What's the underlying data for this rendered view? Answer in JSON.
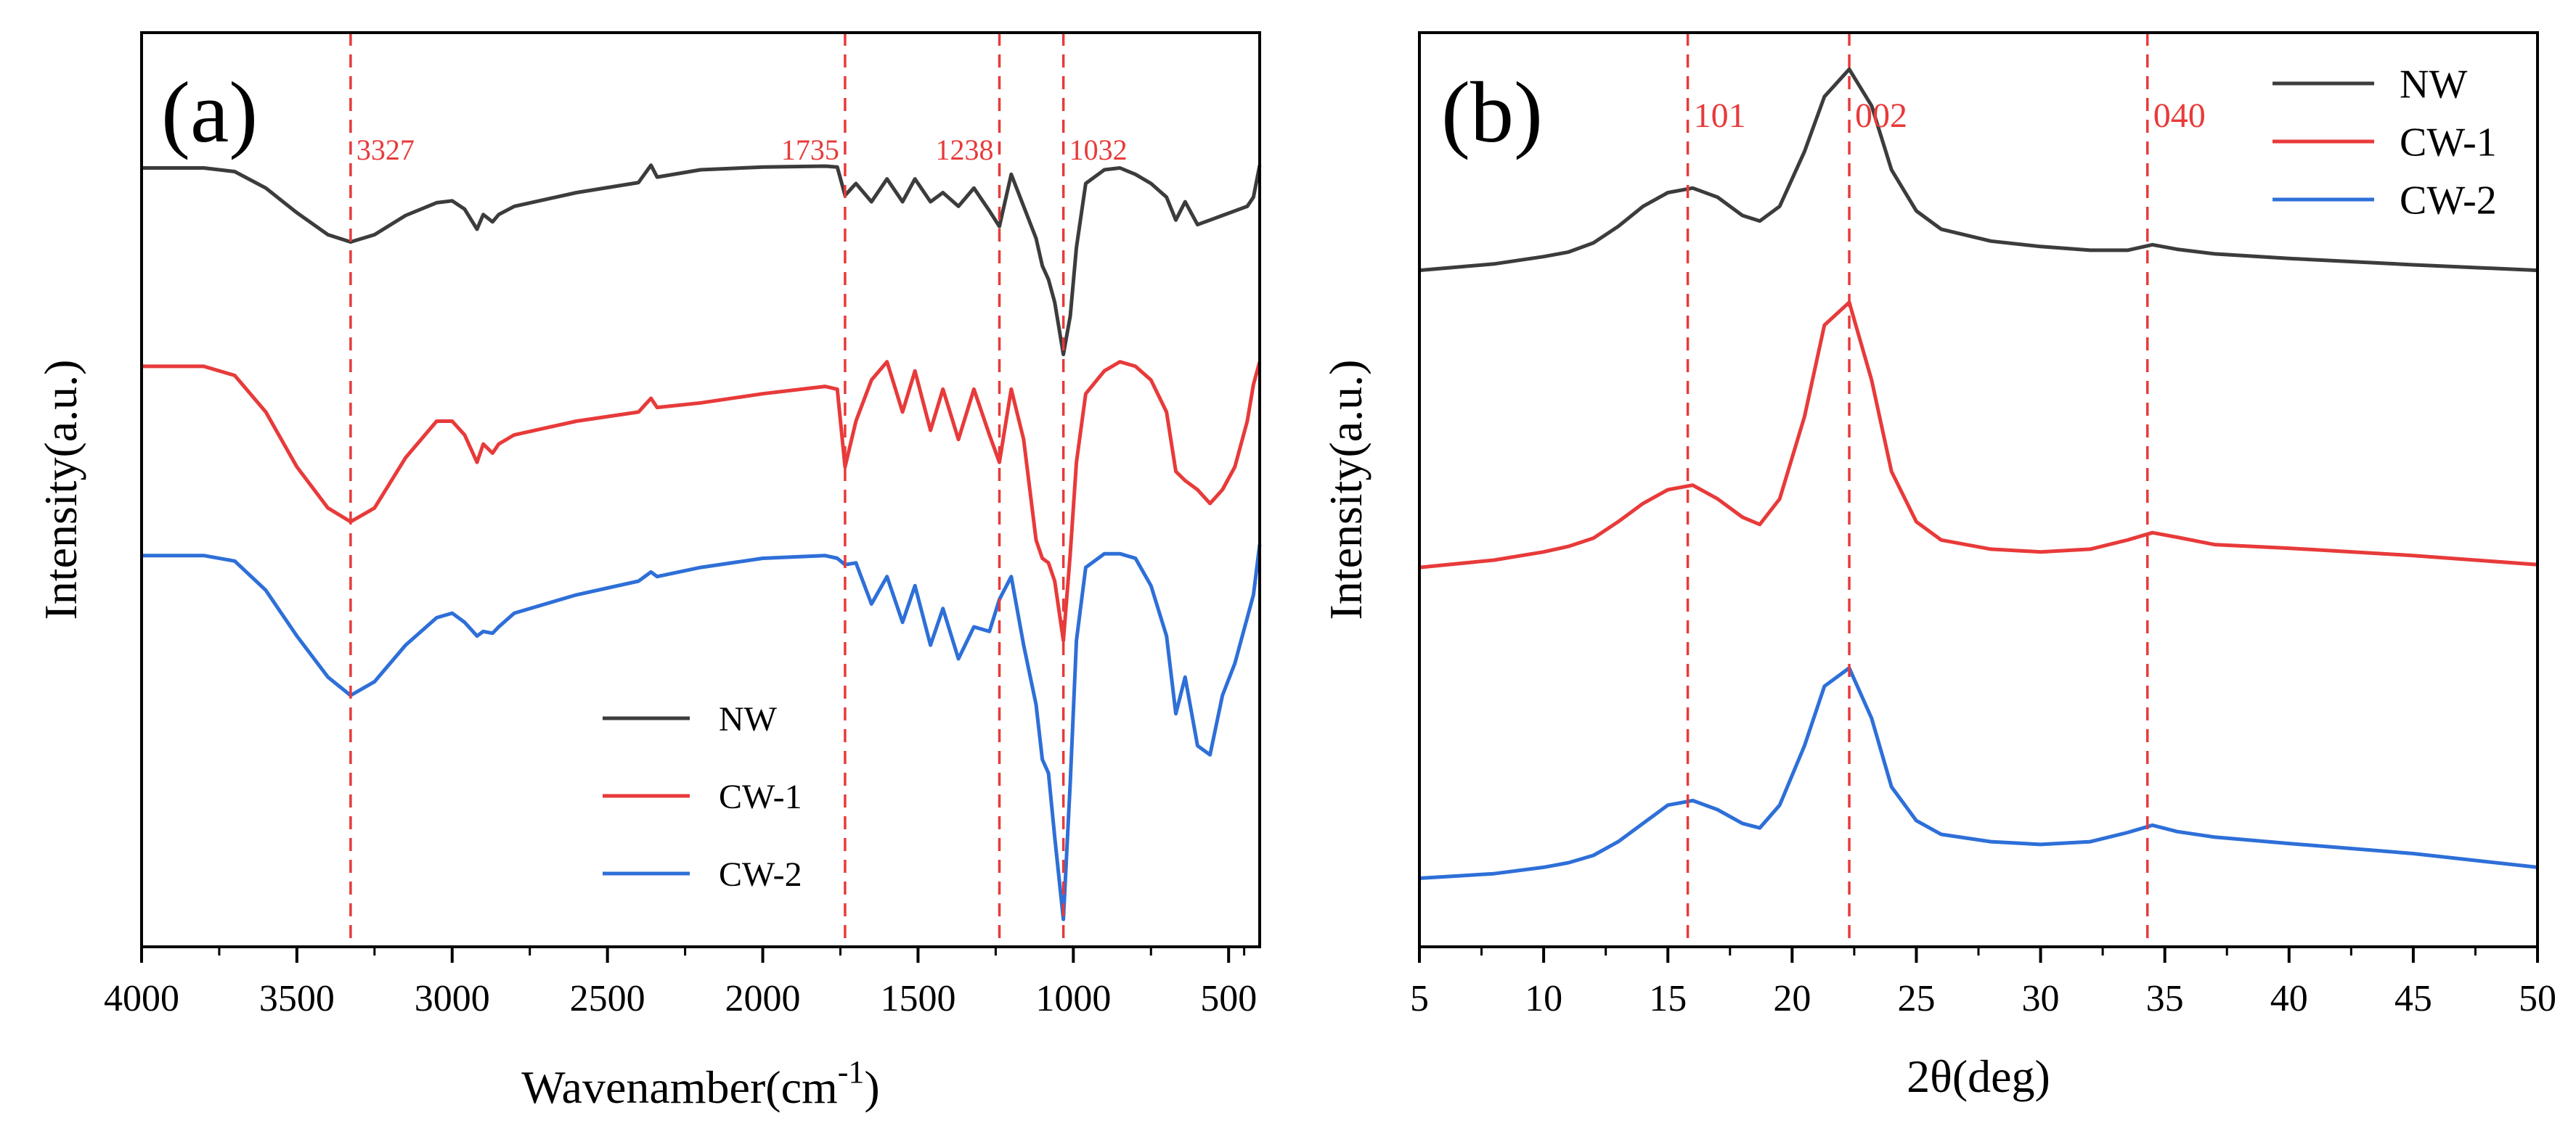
{
  "chart_data": [
    {
      "type": "line",
      "panel_label": "(a)",
      "xlabel": "Wavenamber(cm",
      "xlabel_sup": "-1",
      "xlabel_close": ")",
      "ylabel": "Intensity(a.u.)",
      "xlim": [
        4000,
        400
      ],
      "x_reversed": true,
      "ylim": [
        0,
        100
      ],
      "y_ticks_shown": false,
      "xticks": [
        4000,
        3500,
        3000,
        2500,
        2000,
        1500,
        1000,
        500
      ],
      "xtick_labels": [
        "4000",
        "3500",
        "3000",
        "2500",
        "2000",
        "1500",
        "1000",
        "500"
      ],
      "legend_position": "bottom-center",
      "annotations": [
        {
          "x": 3327,
          "label": "3327"
        },
        {
          "x": 1735,
          "label": "1735"
        },
        {
          "x": 1238,
          "label": "1238"
        },
        {
          "x": 1032,
          "label": "1032"
        }
      ],
      "series": [
        {
          "name": "NW",
          "color": "#3c3c3c",
          "x": [
            4000,
            3800,
            3700,
            3600,
            3500,
            3400,
            3327,
            3250,
            3150,
            3050,
            3000,
            2960,
            2920,
            2900,
            2870,
            2850,
            2800,
            2600,
            2400,
            2360,
            2340,
            2200,
            2000,
            1800,
            1760,
            1735,
            1700,
            1650,
            1600,
            1550,
            1510,
            1460,
            1420,
            1370,
            1320,
            1270,
            1238,
            1200,
            1160,
            1120,
            1100,
            1080,
            1060,
            1032,
            1010,
            990,
            960,
            900,
            850,
            800,
            750,
            700,
            670,
            640,
            600,
            560,
            520,
            480,
            440,
            420,
            400
          ],
          "values": [
            85.2,
            85.2,
            84.8,
            83.0,
            80.3,
            77.9,
            77.1,
            77.9,
            80.0,
            81.4,
            81.6,
            80.7,
            78.5,
            80.1,
            79.3,
            80.1,
            81.0,
            82.5,
            83.6,
            85.5,
            84.2,
            85.0,
            85.3,
            85.4,
            85.3,
            82.2,
            83.5,
            81.5,
            84.0,
            81.5,
            84.0,
            81.5,
            82.5,
            81.0,
            83.0,
            80.5,
            78.8,
            84.5,
            81.0,
            77.5,
            74.5,
            73.0,
            70.5,
            64.8,
            69.0,
            76.5,
            83.5,
            85.0,
            85.2,
            84.5,
            83.5,
            82.0,
            79.5,
            81.5,
            79.0,
            79.5,
            80.0,
            80.5,
            81.0,
            82.0,
            85.5
          ]
        },
        {
          "name": "CW-1",
          "color": "#e83a3a",
          "x": [
            4000,
            3800,
            3700,
            3600,
            3500,
            3400,
            3327,
            3250,
            3150,
            3050,
            3000,
            2960,
            2920,
            2900,
            2870,
            2850,
            2800,
            2600,
            2400,
            2360,
            2340,
            2200,
            2000,
            1800,
            1760,
            1735,
            1700,
            1650,
            1600,
            1550,
            1510,
            1460,
            1420,
            1370,
            1320,
            1270,
            1238,
            1200,
            1160,
            1120,
            1100,
            1080,
            1060,
            1032,
            1010,
            990,
            960,
            900,
            850,
            800,
            750,
            700,
            670,
            640,
            600,
            560,
            520,
            480,
            440,
            420,
            400
          ],
          "values": [
            63.5,
            63.5,
            62.5,
            58.5,
            52.5,
            48.0,
            46.5,
            48.0,
            53.5,
            57.5,
            57.5,
            56.0,
            53.0,
            55.0,
            54.0,
            55.0,
            56.0,
            57.5,
            58.5,
            60.0,
            59.0,
            59.5,
            60.5,
            61.3,
            61.0,
            52.5,
            57.5,
            62.0,
            64.0,
            58.5,
            63.0,
            56.5,
            61.0,
            55.5,
            61.0,
            56.0,
            53.0,
            61.0,
            55.5,
            44.5,
            42.5,
            42.0,
            40.0,
            33.5,
            43.0,
            53.0,
            60.5,
            63.0,
            64.0,
            63.5,
            62.0,
            58.5,
            52.0,
            51.0,
            50.0,
            48.5,
            50.0,
            52.5,
            57.5,
            61.5,
            64.0
          ]
        },
        {
          "name": "CW-2",
          "color": "#2e6fd8",
          "x": [
            4000,
            3800,
            3700,
            3600,
            3500,
            3400,
            3327,
            3250,
            3150,
            3050,
            3000,
            2960,
            2920,
            2900,
            2870,
            2850,
            2800,
            2600,
            2400,
            2360,
            2340,
            2200,
            2000,
            1800,
            1760,
            1735,
            1700,
            1650,
            1600,
            1550,
            1510,
            1460,
            1420,
            1370,
            1320,
            1270,
            1238,
            1200,
            1160,
            1120,
            1100,
            1080,
            1060,
            1032,
            1010,
            990,
            960,
            900,
            850,
            800,
            750,
            700,
            670,
            640,
            600,
            560,
            520,
            480,
            440,
            420,
            400
          ],
          "values": [
            42.8,
            42.8,
            42.2,
            39.0,
            34.0,
            29.5,
            27.5,
            29.0,
            33.0,
            36.0,
            36.5,
            35.5,
            34.0,
            34.5,
            34.3,
            35.0,
            36.5,
            38.5,
            40.0,
            41.0,
            40.5,
            41.5,
            42.5,
            42.8,
            42.5,
            41.8,
            42.0,
            37.5,
            40.5,
            35.5,
            39.5,
            33.0,
            37.0,
            31.5,
            35.0,
            34.5,
            38.0,
            40.5,
            33.0,
            26.5,
            20.5,
            19.0,
            12.0,
            3.0,
            18.0,
            33.5,
            41.5,
            43.0,
            43.0,
            42.5,
            39.5,
            34.0,
            25.5,
            29.5,
            22.0,
            21.0,
            27.5,
            31.0,
            36.0,
            38.5,
            44.0
          ]
        }
      ]
    },
    {
      "type": "line",
      "panel_label": "(b)",
      "xlabel": "2θ(deg)",
      "ylabel": "Intensity(a.u.)",
      "xlim": [
        5,
        50
      ],
      "ylim": [
        0,
        100
      ],
      "y_ticks_shown": false,
      "xticks": [
        5,
        10,
        15,
        20,
        25,
        30,
        35,
        40,
        45,
        50
      ],
      "xtick_labels": [
        "5",
        "10",
        "15",
        "20",
        "25",
        "30",
        "35",
        "40",
        "45",
        "50"
      ],
      "legend_position": "top-right",
      "annotations": [
        {
          "x": 15.8,
          "label": "101"
        },
        {
          "x": 22.3,
          "label": "002"
        },
        {
          "x": 34.3,
          "label": "040"
        }
      ],
      "series": [
        {
          "name": "NW",
          "color": "#3c3c3c",
          "x": [
            5,
            8,
            10,
            11,
            12,
            13,
            14,
            15,
            16,
            17,
            18,
            18.7,
            19.5,
            20.5,
            21.3,
            22.3,
            23.2,
            24,
            25,
            26,
            28,
            30,
            32,
            33.5,
            34.5,
            35.5,
            37,
            40,
            45,
            50
          ],
          "values": [
            74.0,
            74.7,
            75.5,
            76.0,
            77.0,
            78.8,
            81.0,
            82.5,
            83.0,
            82.0,
            80.0,
            79.4,
            81.0,
            87.0,
            93.0,
            96.0,
            92.0,
            85.0,
            80.5,
            78.5,
            77.2,
            76.6,
            76.2,
            76.2,
            76.8,
            76.3,
            75.8,
            75.3,
            74.6,
            74.0
          ]
        },
        {
          "name": "CW-1",
          "color": "#e83a3a",
          "x": [
            5,
            8,
            10,
            11,
            12,
            13,
            14,
            15,
            16,
            17,
            18,
            18.7,
            19.5,
            20.5,
            21.3,
            22.3,
            23.2,
            24,
            25,
            26,
            28,
            30,
            32,
            33.5,
            34.5,
            35.5,
            37,
            40,
            45,
            50
          ],
          "values": [
            41.5,
            42.3,
            43.2,
            43.8,
            44.7,
            46.5,
            48.5,
            50.0,
            50.5,
            49.0,
            47.0,
            46.2,
            49.0,
            58.0,
            68.0,
            70.5,
            62.0,
            52.0,
            46.5,
            44.5,
            43.5,
            43.2,
            43.5,
            44.5,
            45.3,
            44.8,
            44.0,
            43.6,
            42.8,
            41.8
          ]
        },
        {
          "name": "CW-2",
          "color": "#2e6fd8",
          "x": [
            5,
            8,
            10,
            11,
            12,
            13,
            14,
            15,
            16,
            17,
            18,
            18.7,
            19.5,
            20.5,
            21.3,
            22.3,
            23.2,
            24,
            25,
            26,
            28,
            30,
            32,
            33.5,
            34.5,
            35.5,
            37,
            40,
            45,
            50
          ],
          "values": [
            7.5,
            8.0,
            8.7,
            9.2,
            10.0,
            11.5,
            13.5,
            15.5,
            16.0,
            15.0,
            13.5,
            13.0,
            15.5,
            22.0,
            28.5,
            30.5,
            25.0,
            17.5,
            13.8,
            12.3,
            11.5,
            11.2,
            11.5,
            12.5,
            13.3,
            12.6,
            12.0,
            11.3,
            10.2,
            8.7
          ]
        }
      ]
    }
  ]
}
